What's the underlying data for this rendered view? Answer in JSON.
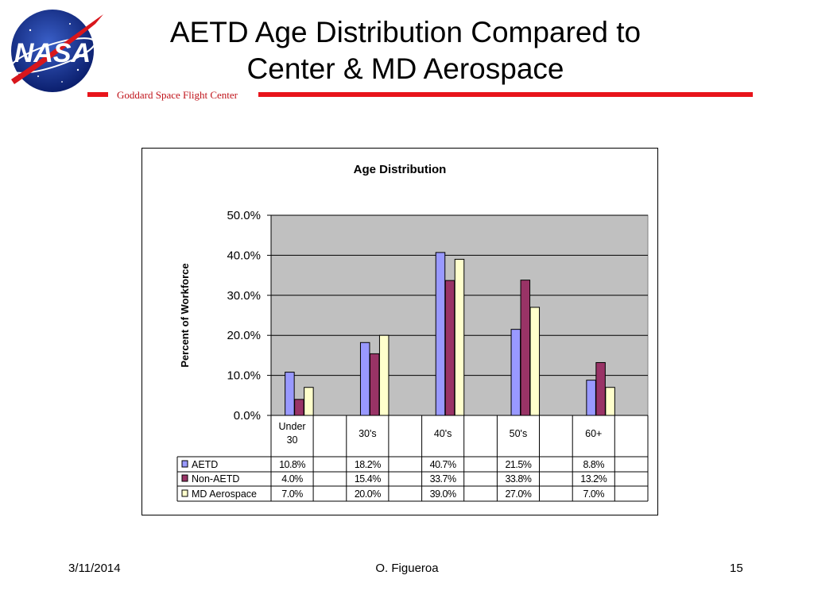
{
  "slide": {
    "title_line1": "AETD Age Distribution Compared to",
    "title_line2": "Center & MD Aerospace",
    "org": "Goddard Space Flight Center",
    "logo_text": "NASA",
    "footer": {
      "date": "3/11/2014",
      "author": "O. Figueroa",
      "page": "15"
    }
  },
  "colors": {
    "accent_red": "#e8141b",
    "plot_bg": "#c0c0c0"
  },
  "chart_data": {
    "type": "bar",
    "title": "Age Distribution",
    "ylabel": "Percent of Workforce",
    "xlabel": "",
    "ylim": [
      0,
      50
    ],
    "yticks": [
      0,
      10,
      20,
      30,
      40,
      50
    ],
    "ytick_labels": [
      "0.0%",
      "10.0%",
      "20.0%",
      "30.0%",
      "40.0%",
      "50.0%"
    ],
    "categories": [
      "Under 30",
      "30's",
      "40's",
      "50's",
      "60+"
    ],
    "series": [
      {
        "name": "AETD",
        "color": "#9999ff",
        "values": [
          10.8,
          18.2,
          40.7,
          21.5,
          8.8
        ],
        "labels": [
          "10.8%",
          "18.2%",
          "40.7%",
          "21.5%",
          "8.8%"
        ]
      },
      {
        "name": "Non-AETD",
        "color": "#993366",
        "values": [
          4.0,
          15.4,
          33.7,
          33.8,
          13.2
        ],
        "labels": [
          "4.0%",
          "15.4%",
          "33.7%",
          "33.8%",
          "13.2%"
        ]
      },
      {
        "name": "MD Aerospace",
        "color": "#ffffcc",
        "values": [
          7.0,
          20.0,
          39.0,
          27.0,
          7.0
        ],
        "labels": [
          "7.0%",
          "20.0%",
          "39.0%",
          "27.0%",
          "7.0%"
        ]
      }
    ],
    "grid": true,
    "legend": "data-table"
  }
}
